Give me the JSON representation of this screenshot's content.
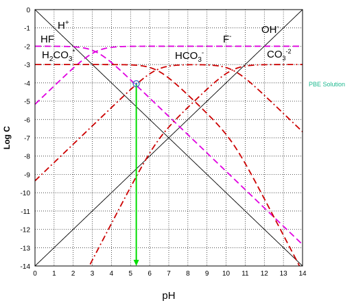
{
  "chart_data": {
    "type": "line",
    "xlabel": "pH",
    "ylabel": "Log C",
    "xlim": [
      0,
      14
    ],
    "ylim": [
      -14,
      0
    ],
    "x_ticks": [
      "0",
      "1",
      "2",
      "3",
      "4",
      "5",
      "6",
      "7",
      "8",
      "9",
      "10",
      "11",
      "12",
      "13",
      "14"
    ],
    "y_ticks": [
      "0",
      "-1",
      "-2",
      "-3",
      "-4",
      "-5",
      "-6",
      "-7",
      "-8",
      "-9",
      "-10",
      "-11",
      "-12",
      "-13",
      "-14"
    ],
    "grid": true,
    "constants": {
      "pKa_HF": 3.17,
      "pKa1_carbonate": 6.35,
      "pKa2_carbonate": 10.33,
      "logC_F": -2,
      "logC_CO3": -3
    },
    "series": [
      {
        "name": "H+",
        "kind": "H",
        "color": "#000000",
        "style": "solid"
      },
      {
        "name": "OH-",
        "kind": "OH",
        "color": "#000000",
        "style": "solid"
      },
      {
        "name": "HF",
        "kind": "HF",
        "color": "#e000e0",
        "style": "dashed"
      },
      {
        "name": "F-",
        "kind": "F",
        "color": "#e000e0",
        "style": "dashed"
      },
      {
        "name": "H2CO3*",
        "kind": "H2CO3",
        "color": "#cc0000",
        "style": "dashed"
      },
      {
        "name": "HCO3-",
        "kind": "HCO3",
        "color": "#cc0000",
        "style": "dashdot"
      },
      {
        "name": "CO3-2",
        "kind": "CO3",
        "color": "#cc0000",
        "style": "dashdot"
      }
    ],
    "annotations": {
      "pbe_label": "PBE Solution",
      "pbe_point": {
        "pH": 5.3,
        "logC": -4.05
      },
      "arrow": {
        "pH": 5.3,
        "from": -4.05,
        "to": -14,
        "color": "#00dd00"
      }
    },
    "labels": {
      "H": "H",
      "H_sup": "+",
      "HF": "HF",
      "F": "F",
      "F_sup": "-",
      "OH": "OH",
      "OH_sup": "-",
      "H2CO3_a": "H",
      "H2CO3_sub2": "2",
      "H2CO3_b": "CO",
      "H2CO3_sub3": "3",
      "H2CO3_sup": "*",
      "HCO3_a": "HCO",
      "HCO3_sub": "3",
      "HCO3_sup": "-",
      "CO3_a": "CO",
      "CO3_sub": "3",
      "CO3_sup": "-2"
    }
  }
}
